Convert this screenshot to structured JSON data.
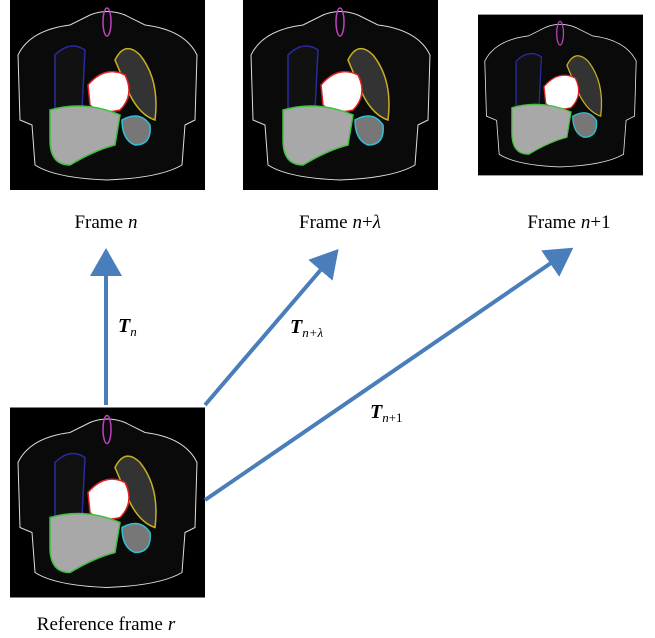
{
  "frames": [
    {
      "text": [
        "Frame",
        "n"
      ]
    },
    {
      "text": [
        "Frame",
        "n",
        "+",
        "λ"
      ]
    },
    {
      "text": [
        "Frame",
        "n",
        "+1"
      ]
    }
  ],
  "transforms": [
    {
      "text": [
        "T",
        "n"
      ]
    },
    {
      "text": [
        "T",
        "n+λ"
      ]
    },
    {
      "text": [
        "T",
        "n",
        "+1"
      ]
    }
  ],
  "reference": {
    "text": [
      "Reference frame",
      "r"
    ]
  }
}
